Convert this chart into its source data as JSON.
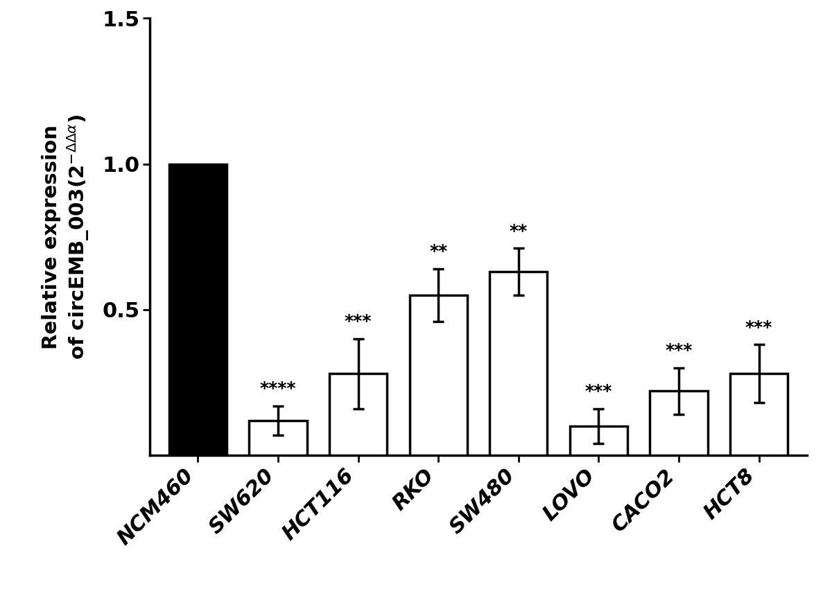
{
  "categories": [
    "NCM460",
    "SW620",
    "HCT116",
    "RKO",
    "SW480",
    "LOVO",
    "CACO2",
    "HCT8"
  ],
  "values": [
    1.0,
    0.12,
    0.28,
    0.55,
    0.63,
    0.1,
    0.22,
    0.28
  ],
  "errors": [
    0.0,
    0.05,
    0.12,
    0.09,
    0.08,
    0.06,
    0.08,
    0.1
  ],
  "bar_colors": [
    "#000000",
    "#ffffff",
    "#ffffff",
    "#ffffff",
    "#ffffff",
    "#ffffff",
    "#ffffff",
    "#ffffff"
  ],
  "bar_edgecolors": [
    "#000000",
    "#000000",
    "#000000",
    "#000000",
    "#000000",
    "#000000",
    "#000000",
    "#000000"
  ],
  "significance": [
    "",
    "****",
    "***",
    "**",
    "**",
    "***",
    "***",
    "***"
  ],
  "ylim": [
    0,
    1.5
  ],
  "yticks": [
    0.5,
    1.0,
    1.5
  ],
  "bar_width": 0.72,
  "background_color": "#ffffff",
  "linewidth": 2.5,
  "errorbar_capsize": 6,
  "errorbar_linewidth": 2.5,
  "sig_fontsize": 18,
  "tick_fontsize": 22,
  "ylabel_fontsize": 21
}
